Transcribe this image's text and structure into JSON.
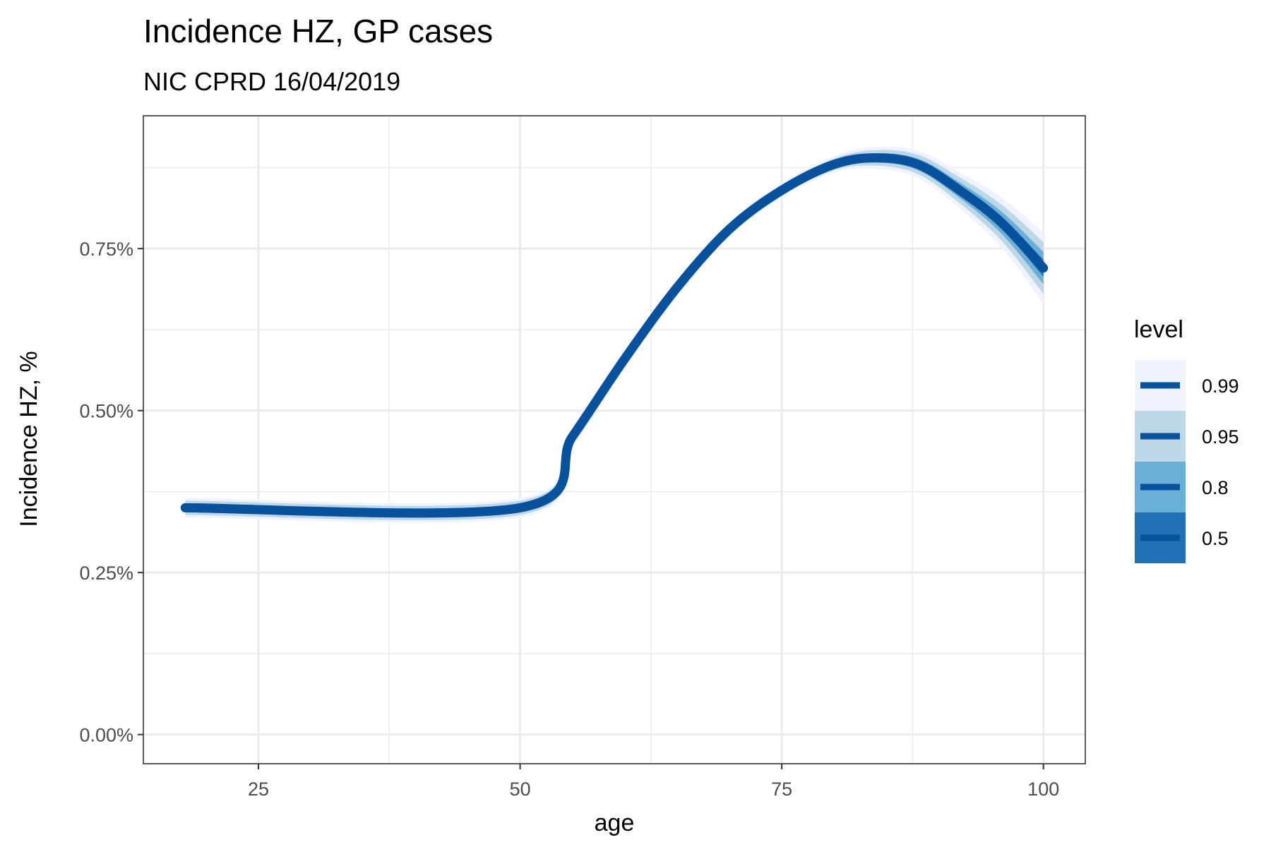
{
  "chart_data": {
    "type": "line",
    "title": "Incidence HZ, GP cases",
    "subtitle": "NIC CPRD 16/04/2019",
    "xlabel": "age",
    "ylabel": "Incidence HZ, %",
    "xlim": [
      14,
      104
    ],
    "ylim": [
      -0.045,
      0.955
    ],
    "x_ticks": [
      25,
      50,
      75,
      100
    ],
    "x_tick_labels": [
      "25",
      "50",
      "75",
      "100"
    ],
    "y_ticks": [
      0,
      0.25,
      0.5,
      0.75
    ],
    "y_tick_labels": [
      "0.00%",
      "0.25%",
      "0.50%",
      "0.75%"
    ],
    "grid": true,
    "legend_position": "right",
    "legend_title": "level",
    "line_color": "#08519c",
    "median": {
      "name": "incidence",
      "x": [
        18,
        50,
        55,
        60,
        65,
        70,
        75,
        80,
        84,
        88,
        92,
        96,
        100
      ],
      "y": [
        0.35,
        0.35,
        0.46,
        0.58,
        0.69,
        0.78,
        0.84,
        0.88,
        0.89,
        0.88,
        0.84,
        0.79,
        0.72
      ]
    },
    "bands": [
      {
        "level": "0.99",
        "color": "#eff3ff",
        "x": [
          18,
          50,
          55,
          60,
          65,
          70,
          75,
          80,
          84,
          88,
          92,
          96,
          100
        ],
        "lower": [
          0.335,
          0.335,
          0.445,
          0.567,
          0.678,
          0.769,
          0.829,
          0.867,
          0.873,
          0.859,
          0.812,
          0.751,
          0.665
        ],
        "upper": [
          0.365,
          0.365,
          0.475,
          0.593,
          0.702,
          0.791,
          0.851,
          0.893,
          0.907,
          0.901,
          0.868,
          0.829,
          0.775
        ]
      },
      {
        "level": "0.95",
        "color": "#bdd7e7",
        "x": [
          18,
          50,
          55,
          60,
          65,
          70,
          75,
          80,
          84,
          88,
          92,
          96,
          100
        ],
        "lower": [
          0.339,
          0.339,
          0.449,
          0.57,
          0.681,
          0.772,
          0.832,
          0.871,
          0.878,
          0.865,
          0.82,
          0.762,
          0.68
        ],
        "upper": [
          0.361,
          0.361,
          0.471,
          0.59,
          0.699,
          0.788,
          0.848,
          0.889,
          0.902,
          0.895,
          0.86,
          0.818,
          0.76
        ]
      },
      {
        "level": "0.8",
        "color": "#6baed6",
        "x": [
          18,
          50,
          55,
          60,
          65,
          70,
          75,
          80,
          84,
          88,
          92,
          96,
          100
        ],
        "lower": [
          0.343,
          0.343,
          0.453,
          0.574,
          0.684,
          0.775,
          0.835,
          0.875,
          0.883,
          0.871,
          0.828,
          0.773,
          0.695
        ],
        "upper": [
          0.357,
          0.357,
          0.467,
          0.586,
          0.696,
          0.785,
          0.845,
          0.885,
          0.897,
          0.889,
          0.852,
          0.807,
          0.745
        ]
      },
      {
        "level": "0.5",
        "color": "#2171b5",
        "x": [
          18,
          50,
          55,
          60,
          65,
          70,
          75,
          80,
          84,
          88,
          92,
          96,
          100
        ],
        "lower": [
          0.346,
          0.346,
          0.456,
          0.577,
          0.687,
          0.777,
          0.837,
          0.877,
          0.886,
          0.875,
          0.834,
          0.781,
          0.707
        ],
        "upper": [
          0.354,
          0.354,
          0.464,
          0.583,
          0.693,
          0.783,
          0.843,
          0.883,
          0.894,
          0.885,
          0.846,
          0.799,
          0.733
        ]
      }
    ]
  }
}
